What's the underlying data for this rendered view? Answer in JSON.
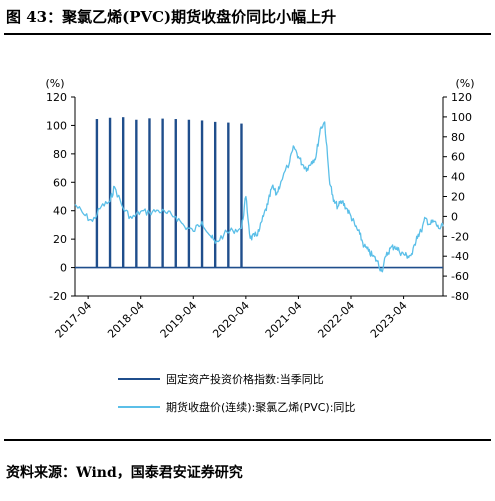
{
  "figure": {
    "title": "图 43：聚氯乙烯(PVC)期货收盘价同比小幅上升",
    "source": "资料来源：Wind，国泰君安证券研究"
  },
  "chart_data": {
    "type": "bar+line",
    "left_axis": {
      "unit": "(%)",
      "ylim": [
        -20,
        120
      ],
      "ticks": [
        -20,
        0,
        20,
        40,
        60,
        80,
        100,
        120
      ],
      "tick_labels": [
        "-20",
        "0",
        "20",
        "40",
        "60",
        "80",
        "100",
        "120"
      ]
    },
    "right_axis": {
      "unit": "(%)",
      "ylim": [
        -80,
        120
      ],
      "ticks": [
        -80,
        -60,
        -40,
        -20,
        0,
        20,
        40,
        60,
        80,
        100,
        120
      ],
      "tick_labels": [
        "-80",
        "-60",
        "-40",
        "-20",
        "0",
        "20",
        "40",
        "60",
        "80",
        "100",
        "120"
      ]
    },
    "x_axis": {
      "start": "2017-04",
      "end": "2024-01",
      "tick_labels": [
        "2017-04",
        "2018-04",
        "2019-04",
        "2020-04",
        "2021-04",
        "2022-04",
        "2023-04"
      ]
    },
    "grid": false,
    "legend_position": "bottom",
    "series": [
      {
        "name": "固定资产投资价格指数:当季同比",
        "type": "bar",
        "axis": "left",
        "color": "#1f4e8c",
        "points": [
          [
            "2017-06",
            104.5
          ],
          [
            "2017-09",
            105.4
          ],
          [
            "2017-12",
            105.8
          ],
          [
            "2018-03",
            104.0
          ],
          [
            "2018-06",
            105.0
          ],
          [
            "2018-09",
            104.8
          ],
          [
            "2018-12",
            104.5
          ],
          [
            "2019-03",
            104.0
          ],
          [
            "2019-06",
            103.5
          ],
          [
            "2019-09",
            102.5
          ],
          [
            "2019-12",
            102.0
          ],
          [
            "2020-03",
            101.3
          ]
        ]
      },
      {
        "name": "期货收盘价(连续):聚氯乙烯(PVC):同比",
        "type": "line",
        "axis": "right",
        "color": "#5bbfe8",
        "points": [
          [
            "2017-01",
            12
          ],
          [
            "2017-03",
            2
          ],
          [
            "2017-05",
            -5
          ],
          [
            "2017-07",
            10
          ],
          [
            "2017-09",
            15
          ],
          [
            "2017-10",
            30
          ],
          [
            "2017-12",
            8
          ],
          [
            "2018-02",
            -2
          ],
          [
            "2018-04",
            5
          ],
          [
            "2018-06",
            4
          ],
          [
            "2018-08",
            6
          ],
          [
            "2018-10",
            3
          ],
          [
            "2018-12",
            0
          ],
          [
            "2019-02",
            -10
          ],
          [
            "2019-04",
            -15
          ],
          [
            "2019-06",
            -5
          ],
          [
            "2019-08",
            -20
          ],
          [
            "2019-09",
            -27
          ],
          [
            "2019-11",
            -18
          ],
          [
            "2020-01",
            -14
          ],
          [
            "2020-03",
            -12
          ],
          [
            "2020-04",
            20
          ],
          [
            "2020-05",
            -22
          ],
          [
            "2020-06",
            -20
          ],
          [
            "2020-07",
            -15
          ],
          [
            "2020-08",
            0
          ],
          [
            "2020-09",
            12
          ],
          [
            "2020-10",
            30
          ],
          [
            "2020-11",
            22
          ],
          [
            "2020-12",
            35
          ],
          [
            "2021-02",
            55
          ],
          [
            "2021-03",
            70
          ],
          [
            "2021-04",
            60
          ],
          [
            "2021-05",
            52
          ],
          [
            "2021-06",
            48
          ],
          [
            "2021-07",
            55
          ],
          [
            "2021-08",
            60
          ],
          [
            "2021-09",
            88
          ],
          [
            "2021-10",
            95
          ],
          [
            "2021-11",
            40
          ],
          [
            "2021-12",
            15
          ],
          [
            "2022-01",
            10
          ],
          [
            "2022-02",
            15
          ],
          [
            "2022-03",
            8
          ],
          [
            "2022-04",
            0
          ],
          [
            "2022-05",
            -10
          ],
          [
            "2022-06",
            -18
          ],
          [
            "2022-07",
            -30
          ],
          [
            "2022-08",
            -35
          ],
          [
            "2022-09",
            -40
          ],
          [
            "2022-10",
            -45
          ],
          [
            "2022-11",
            -55
          ],
          [
            "2022-12",
            -40
          ],
          [
            "2023-01",
            -32
          ],
          [
            "2023-02",
            -30
          ],
          [
            "2023-03",
            -35
          ],
          [
            "2023-04",
            -38
          ],
          [
            "2023-05",
            -40
          ],
          [
            "2023-06",
            -38
          ],
          [
            "2023-07",
            -20
          ],
          [
            "2023-08",
            -15
          ],
          [
            "2023-09",
            -2
          ],
          [
            "2023-10",
            -8
          ],
          [
            "2023-11",
            -5
          ],
          [
            "2023-12",
            -12
          ],
          [
            "2024-01",
            -10
          ]
        ]
      }
    ]
  }
}
